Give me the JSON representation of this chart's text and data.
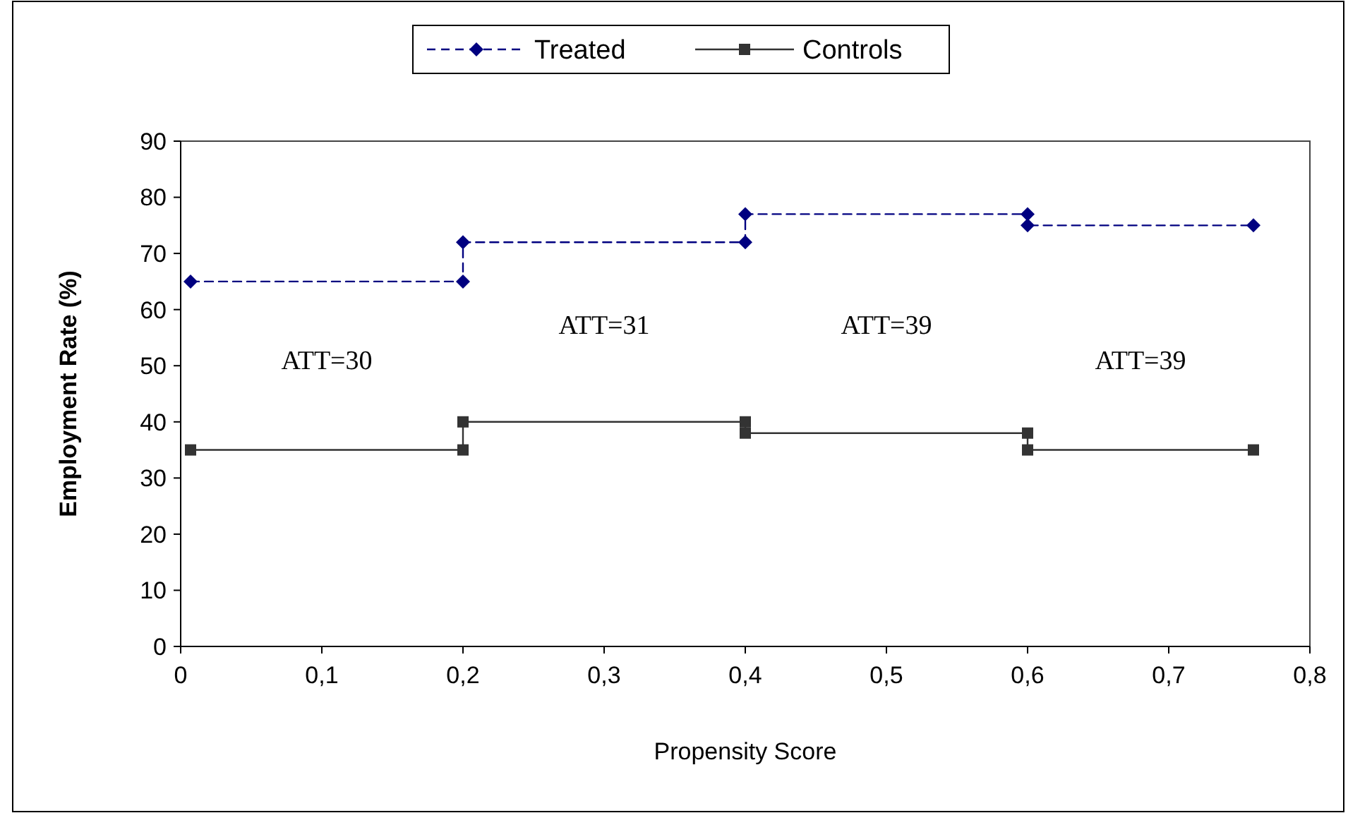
{
  "chart_data": {
    "type": "line",
    "xlabel": "Propensity Score",
    "ylabel": "Employment Rate (%)",
    "xlim": [
      0,
      0.8
    ],
    "ylim": [
      0,
      90
    ],
    "xticks": [
      0,
      {
        "value": 0.1,
        "label": "0,1"
      },
      {
        "value": 0.2,
        "label": "0,2"
      },
      {
        "value": 0.3,
        "label": "0,3"
      },
      {
        "value": 0.4,
        "label": "0,4"
      },
      {
        "value": 0.5,
        "label": "0,5"
      },
      {
        "value": 0.6,
        "label": "0,6"
      },
      {
        "value": 0.7,
        "label": "0,7"
      },
      {
        "value": 0.8,
        "label": "0,8"
      }
    ],
    "yticks": [
      0,
      10,
      20,
      30,
      40,
      50,
      60,
      70,
      80,
      90
    ],
    "grid": false,
    "legend": "top",
    "series": [
      {
        "name": "Treated",
        "color": "#000080",
        "marker": "diamond",
        "line_style": "dashed",
        "x": [
          0.007,
          0.2,
          0.2,
          0.4,
          0.4,
          0.6,
          0.6,
          0.76
        ],
        "values": [
          65,
          65,
          72,
          72,
          77,
          77,
          75,
          75
        ]
      },
      {
        "name": "Controls",
        "color": "#333333",
        "marker": "square",
        "line_style": "solid",
        "x": [
          0.007,
          0.2,
          0.2,
          0.4,
          0.4,
          0.6,
          0.6,
          0.76
        ],
        "values": [
          35,
          35,
          40,
          40,
          38,
          38,
          35,
          35
        ]
      }
    ],
    "annotations": [
      "ATT=30",
      "ATT=31",
      "ATT=39",
      "ATT=39"
    ]
  }
}
